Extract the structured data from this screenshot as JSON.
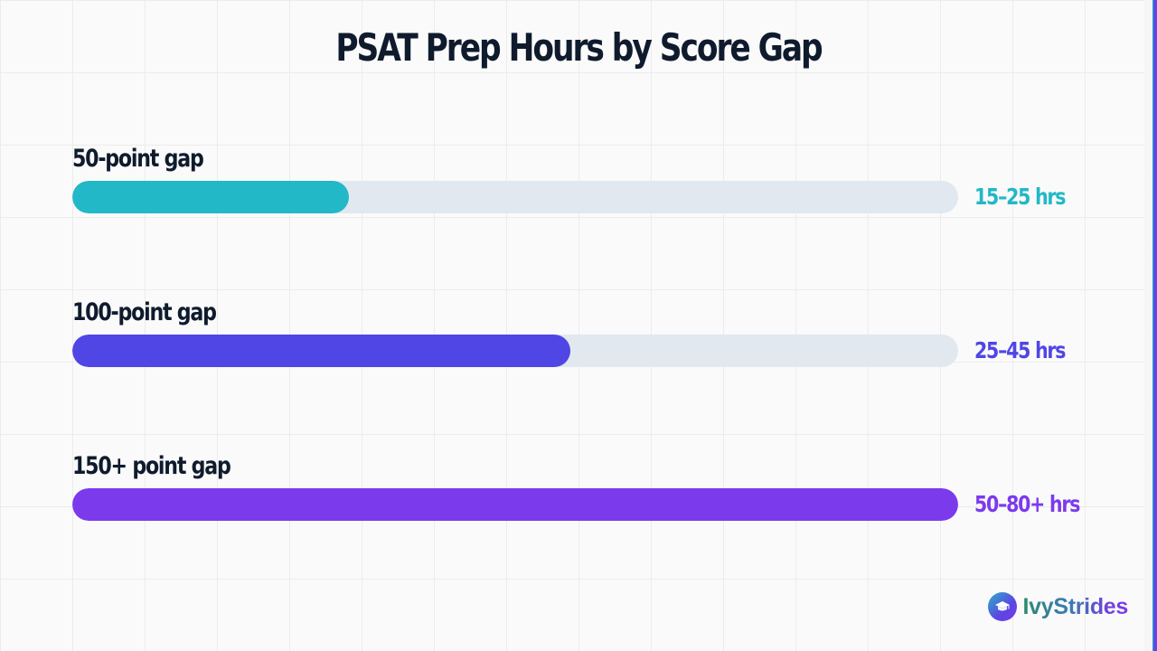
{
  "colors": {
    "background": "#fafafa",
    "grid": "#ececec",
    "title": "#0f1b2d",
    "track": "#e2e8f0",
    "brand_start": "#2f8a6e",
    "brand_end": "#7c3aed"
  },
  "brand": {
    "name": "IvyStrides",
    "icon": "graduation-cap-icon"
  },
  "chart_data": {
    "type": "bar",
    "orientation": "horizontal",
    "title": "PSAT Prep Hours by Score Gap",
    "xlabel": "",
    "ylabel": "",
    "grid": false,
    "legend": "none",
    "xlim": [
      0,
      80
    ],
    "categories": [
      "50-point gap",
      "100-point gap",
      "150+ point gap"
    ],
    "values": [
      25,
      45,
      80
    ],
    "value_labels": [
      "15–25 hrs",
      "25–45 hrs",
      "50–80+ hrs"
    ],
    "colors": [
      "#22b8c8",
      "#5046e5",
      "#7c3aed"
    ]
  }
}
